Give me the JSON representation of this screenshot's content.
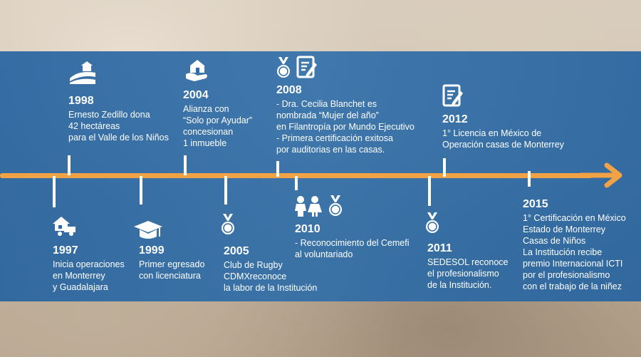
{
  "milestones": {
    "y1997": {
      "year": "1997",
      "text": "Inicia operaciones\nen Monterrey\ny Guadalajara"
    },
    "y1998": {
      "year": "1998",
      "text": "Ernesto Zedillo dona\n42 hectáreas\npara el Valle de los Niños"
    },
    "y1999": {
      "year": "1999",
      "text": "Primer egresado\ncon licenciatura"
    },
    "y2004": {
      "year": "2004",
      "text": "Alianza con\n“Solo por Ayudar”\nconcesionan\n1 inmueble"
    },
    "y2005": {
      "year": "2005",
      "text": " Club de Rugby\nCDMXreconoce\nla labor de la Institución"
    },
    "y2008": {
      "year": "2008",
      "text": "- Dra. Cecilia Blanchet es\nnombrada “Mujer del año”\nen Filantropía por Mundo Ejecutivo\n- Primera certificación exitosa\npor auditorias en las casas."
    },
    "y2010": {
      "year": "2010",
      "text": "- Reconocimiento del Cemefi\nal voluntariado"
    },
    "y2011": {
      "year": "2011",
      "text": "SEDESOL reconoce\nel profesionalismo\nde la  Institución."
    },
    "y2012": {
      "year": "2012",
      "text": "1° Licencia en México de\nOperación casas de Monterrey"
    },
    "y2015": {
      "year": "2015",
      "text": "1° Certificación en México\nEstado de Monterrey\nCasas de Niños\n La Institución recibe\npremio Internacional  ICTI\npor el profesionalismo\n con el trabajo de la niñez"
    }
  },
  "colors": {
    "band": "#2a6ca9",
    "axis": "#f0a245",
    "text": "#ffffff"
  }
}
